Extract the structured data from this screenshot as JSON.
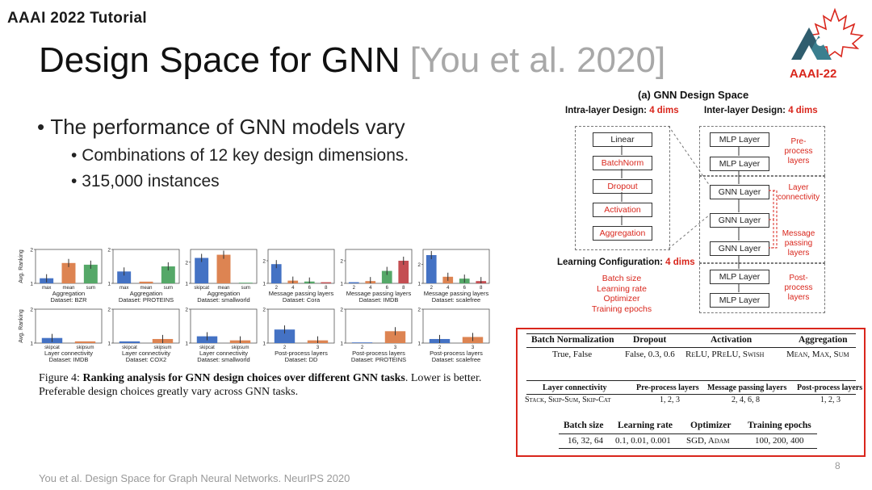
{
  "header": {
    "tutorial": "AAAI 2022 Tutorial",
    "logo_text": "AAAI-22"
  },
  "title": {
    "main": "Design Space for GNN",
    "citation": "[You et al. 2020]"
  },
  "bullets": {
    "main": "The performance of GNN models vary",
    "sub1": "Combinations of 12 key design dimensions.",
    "sub2": "315,000 instances"
  },
  "colors": {
    "red": "#d9261c",
    "blue": "#4472c4",
    "orange": "#dd8452",
    "green": "#55a868",
    "rose": "#c44e52"
  },
  "design_space": {
    "title": "(a) GNN Design Space",
    "intra_label": "Intra-layer Design:",
    "intra_dims": "4 dims",
    "inter_label": "Inter-layer Design:",
    "inter_dims": "4 dims",
    "intra_boxes": [
      "Linear",
      "BatchNorm",
      "Dropout",
      "Activation",
      "Aggregation"
    ],
    "inter_boxes": [
      "MLP Layer",
      "MLP Layer",
      "GNN Layer",
      "GNN Layer",
      "GNN Layer",
      "MLP Layer",
      "MLP Layer"
    ],
    "pre_process": "Pre-\nprocess\nlayers",
    "layer_connectivity": "Layer\nconnectivity",
    "message_passing": "Message\npassing\nlayers",
    "post_process": "Post-\nprocess\nlayers",
    "learning_label": "Learning Configuration:",
    "learning_dims": "4 dims",
    "learning_items": [
      "Batch size",
      "Learning rate",
      "Optimizer",
      "Training epochs"
    ]
  },
  "table": {
    "row1_headers": [
      "Batch Normalization",
      "Dropout",
      "Activation",
      "Aggregation"
    ],
    "row1_values": [
      "True, False",
      "False, 0.3, 0.6",
      "ReLU, PReLU, Swish",
      "Mean, Max, Sum"
    ],
    "row2_headers": [
      "Layer connectivity",
      "Pre-process layers",
      "Message passing layers",
      "Post-process layers"
    ],
    "row2_values": [
      "Stack, Skip-Sum, Skip-Cat",
      "1, 2, 3",
      "2, 4, 6, 8",
      "1, 2, 3"
    ],
    "row3_headers": [
      "Batch size",
      "Learning rate",
      "Optimizer",
      "Training epochs"
    ],
    "row3_values": [
      "16, 32, 64",
      "0.1, 0.01, 0.001",
      "SGD, Adam",
      "100, 200, 400"
    ]
  },
  "chart_data": {
    "type": "bar",
    "ylabel": "Avg. Ranking",
    "panels": [
      {
        "categories": [
          "max",
          "mean",
          "sum"
        ],
        "values": [
          1.15,
          1.6,
          1.55
        ],
        "colors": [
          "blue",
          "orange",
          "green"
        ],
        "ylim": [
          1,
          2
        ],
        "yticks": [
          "1",
          "2"
        ],
        "xlabel": "Aggregation",
        "dataset": "Dataset: BZR"
      },
      {
        "categories": [
          "max",
          "mean",
          "sum"
        ],
        "values": [
          1.35,
          1.05,
          1.5
        ],
        "colors": [
          "blue",
          "orange",
          "green"
        ],
        "ylim": [
          1,
          2
        ],
        "yticks": [
          "1",
          "2"
        ],
        "xlabel": "Aggregation",
        "dataset": "Dataset: PROTEINS"
      },
      {
        "categories": [
          "skipcat",
          "mean",
          "sum"
        ],
        "values": [
          2.2,
          2.35,
          1.0
        ],
        "colors": [
          "blue",
          "orange",
          "green"
        ],
        "ylim": [
          1,
          2.6
        ],
        "yticks": [
          "1",
          "2"
        ],
        "xlabel": "Aggregation",
        "dataset": "Dataset: smallworld"
      },
      {
        "categories": [
          "2",
          "4",
          "6",
          "8"
        ],
        "values": [
          1.85,
          1.12,
          1.08,
          1.05
        ],
        "colors": [
          "blue",
          "orange",
          "green",
          "rose"
        ],
        "ylim": [
          1,
          2.5
        ],
        "yticks": [
          "1",
          "2"
        ],
        "xlabel": "Message passing layers",
        "dataset": "Dataset: Cora"
      },
      {
        "categories": [
          "2",
          "4",
          "6",
          "8"
        ],
        "values": [
          1.05,
          1.1,
          1.55,
          2.0
        ],
        "colors": [
          "blue",
          "orange",
          "green",
          "rose"
        ],
        "ylim": [
          1,
          2.5
        ],
        "yticks": [
          "1",
          "2"
        ],
        "xlabel": "Message passing layers",
        "dataset": "Dataset: IMDB"
      },
      {
        "categories": [
          "2",
          "4",
          "6",
          "8"
        ],
        "values": [
          2.5,
          1.35,
          1.25,
          1.12
        ],
        "colors": [
          "blue",
          "orange",
          "green",
          "rose"
        ],
        "ylim": [
          1,
          2.8
        ],
        "yticks": [
          "1",
          "2"
        ],
        "xlabel": "Message passing layers",
        "dataset": "Dataset: scalefree"
      },
      {
        "categories": [
          "skipcat",
          "skipsum"
        ],
        "values": [
          1.15,
          1.05
        ],
        "colors": [
          "blue",
          "orange"
        ],
        "ylim": [
          1,
          2
        ],
        "yticks": [
          "1",
          "2"
        ],
        "xlabel": "Layer connectivity",
        "dataset": "Dataset: IMDB"
      },
      {
        "categories": [
          "skipcat",
          "skipsum"
        ],
        "values": [
          1.05,
          1.12
        ],
        "colors": [
          "blue",
          "orange"
        ],
        "ylim": [
          1,
          2
        ],
        "yticks": [
          "1",
          "2"
        ],
        "xlabel": "Layer connectivity",
        "dataset": "Dataset: COX2"
      },
      {
        "categories": [
          "skipcat",
          "skipsum"
        ],
        "values": [
          1.2,
          1.08
        ],
        "colors": [
          "blue",
          "orange"
        ],
        "ylim": [
          1,
          2
        ],
        "yticks": [
          "1",
          "2"
        ],
        "xlabel": "Layer connectivity",
        "dataset": "Dataset: smallworld"
      },
      {
        "categories": [
          "2",
          "3"
        ],
        "values": [
          1.4,
          1.08
        ],
        "colors": [
          "blue",
          "orange"
        ],
        "ylim": [
          1,
          2
        ],
        "yticks": [
          "1",
          "2"
        ],
        "xlabel": "Post-process layers",
        "dataset": "Dataset: DD"
      },
      {
        "categories": [
          "2",
          "3"
        ],
        "values": [
          1.0,
          1.35
        ],
        "colors": [
          "blue",
          "orange"
        ],
        "ylim": [
          1,
          2
        ],
        "yticks": [
          "1",
          "2"
        ],
        "xlabel": "Post-process layers",
        "dataset": "Dataset: PROTEINS"
      },
      {
        "categories": [
          "2",
          "3"
        ],
        "values": [
          1.12,
          1.18
        ],
        "colors": [
          "blue",
          "orange"
        ],
        "ylim": [
          1,
          2
        ],
        "yticks": [
          "1",
          "2"
        ],
        "xlabel": "Post-process layers",
        "dataset": "Dataset: scalefree"
      }
    ]
  },
  "figure_caption": {
    "prefix": "Figure 4: ",
    "bold": "Ranking analysis for GNN design choices over different GNN tasks",
    "rest": ". Lower is better. Preferable design choices greatly vary across GNN tasks."
  },
  "footer": {
    "reference": "You et al. Design Space for Graph Neural Networks. NeurIPS 2020",
    "page": "8"
  }
}
